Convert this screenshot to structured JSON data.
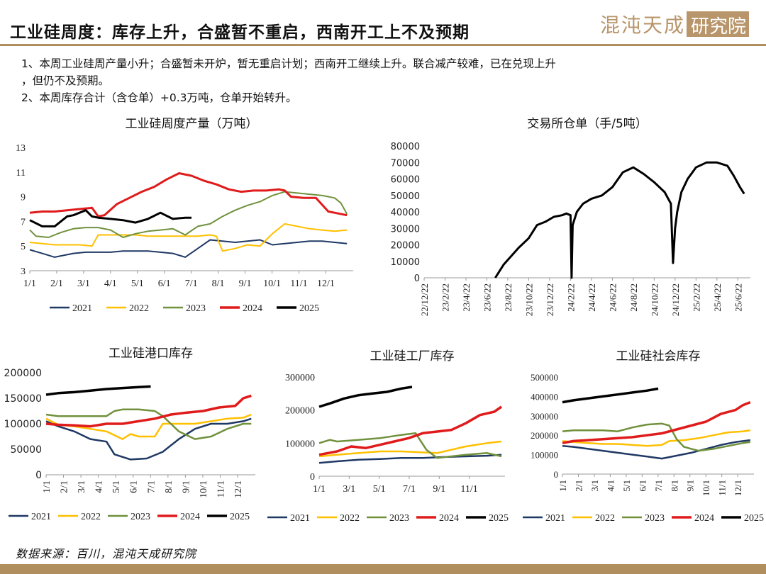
{
  "header": {
    "title": "工业硅周度：库存上升，合盛暂不重启，西南开工上不及预期",
    "logo_text": "混沌天成",
    "logo_box_text": "研究院"
  },
  "bullets": [
    "1、本周工业硅周产量小升；合盛暂未开炉，暂无重启计划；西南开工继续上升。联合减产较难，已在兑现上升",
    "，但仍不及预期。",
    "2、本周库存合计（含仓单）+0.3万吨，仓单开始转升。"
  ],
  "source": "数据来源：百川，混沌天成研究院",
  "colors": {
    "2021": "#1f3864",
    "2022": "#ffc000",
    "2023": "#70913c",
    "2024": "#e01b1b",
    "2025": "#000000",
    "gold": "#b08e5e"
  },
  "chart_data": [
    {
      "id": "weekly_output",
      "type": "line",
      "title": "工业硅周度产量（万吨）",
      "x_ticks": [
        "1/1",
        "2/1",
        "3/1",
        "4/1",
        "5/1",
        "6/1",
        "7/1",
        "8/1",
        "9/1",
        "10/1",
        "11/1",
        "12/1"
      ],
      "ylim": [
        3,
        13
      ],
      "y_ticks": [
        "3",
        "5",
        "7",
        "9",
        "11",
        "13"
      ],
      "series": [
        {
          "name": "2021",
          "x": [
            1,
            3,
            5,
            6,
            8,
            10,
            12,
            14,
            16,
            18,
            20,
            22,
            24,
            26,
            28,
            30,
            32,
            34,
            36,
            38,
            40,
            42,
            44,
            46,
            48,
            50,
            52
          ],
          "values": [
            4.7,
            4.4,
            4.1,
            4.2,
            4.4,
            4.5,
            4.5,
            4.5,
            4.6,
            4.6,
            4.6,
            4.5,
            4.4,
            4.1,
            4.8,
            5.5,
            5.4,
            5.3,
            5.4,
            5.5,
            5.1,
            5.2,
            5.3,
            5.4,
            5.4,
            5.3,
            5.2
          ]
        },
        {
          "name": "2022",
          "x": [
            1,
            3,
            5,
            7,
            9,
            11,
            12,
            14,
            16,
            18,
            20,
            22,
            24,
            26,
            28,
            30,
            31,
            32,
            34,
            36,
            38,
            40,
            42,
            44,
            46,
            48,
            50,
            52
          ],
          "values": [
            5.3,
            5.2,
            5.1,
            5.1,
            5.1,
            5.0,
            5.9,
            5.9,
            5.9,
            5.9,
            5.8,
            5.8,
            5.8,
            5.8,
            5.8,
            5.9,
            5.8,
            4.6,
            4.8,
            5.1,
            5.0,
            6.0,
            6.8,
            6.6,
            6.4,
            6.3,
            6.2,
            6.3
          ]
        },
        {
          "name": "2023",
          "x": [
            1,
            2,
            4,
            6,
            8,
            10,
            12,
            14,
            16,
            18,
            20,
            22,
            24,
            26,
            28,
            30,
            32,
            34,
            36,
            38,
            40,
            42,
            44,
            46,
            48,
            50,
            51,
            52
          ],
          "values": [
            6.3,
            5.8,
            5.7,
            6.1,
            6.4,
            6.5,
            6.5,
            6.3,
            5.7,
            6.0,
            6.2,
            6.3,
            6.4,
            5.9,
            6.6,
            6.8,
            7.4,
            7.9,
            8.3,
            8.6,
            9.1,
            9.4,
            9.3,
            9.2,
            9.1,
            8.9,
            8.5,
            7.6
          ]
        },
        {
          "name": "2024",
          "x": [
            1,
            3,
            5,
            7,
            9,
            11,
            12,
            13,
            15,
            17,
            19,
            21,
            23,
            25,
            27,
            29,
            31,
            33,
            35,
            37,
            39,
            41,
            42,
            43,
            45,
            47,
            49,
            50,
            52
          ],
          "values": [
            7.7,
            7.8,
            7.8,
            7.9,
            8.0,
            8.1,
            7.4,
            7.5,
            8.4,
            8.9,
            9.4,
            9.8,
            10.4,
            10.9,
            10.7,
            10.3,
            10.0,
            9.6,
            9.4,
            9.5,
            9.5,
            9.6,
            9.5,
            9.0,
            8.9,
            8.9,
            7.8,
            7.7,
            7.5
          ]
        },
        {
          "name": "2025",
          "x": [
            1,
            3,
            5,
            7,
            8,
            10,
            11,
            12,
            14,
            16,
            18,
            20,
            22,
            24,
            26,
            27
          ],
          "values": [
            7.1,
            6.6,
            6.6,
            7.4,
            7.5,
            7.9,
            7.4,
            7.3,
            7.2,
            7.1,
            6.9,
            7.2,
            7.7,
            7.2,
            7.3,
            7.3
          ]
        }
      ],
      "legend": [
        "2021",
        "2022",
        "2023",
        "2024",
        "2025"
      ]
    },
    {
      "id": "exchange_warrants",
      "type": "line",
      "title": "交易所仓单（手/5吨）",
      "x_ticks": [
        "22/12/22",
        "23/2/22",
        "23/4/22",
        "23/6/22",
        "23/8/22",
        "23/10/22",
        "23/12/22",
        "24/2/22",
        "24/4/22",
        "24/6/22",
        "24/8/22",
        "24/10/22",
        "24/12/22",
        "25/2/22",
        "25/4/22",
        "25/6/22"
      ],
      "ylim": [
        0,
        80000
      ],
      "y_ticks": [
        "0",
        "10000",
        "20000",
        "30000",
        "40000",
        "50000",
        "60000",
        "70000",
        "80000"
      ],
      "series": [
        {
          "name": "warrants",
          "x": [
            0,
            1.5,
            3.4,
            3.8,
            4.5,
            5.0,
            5.4,
            5.8,
            6.2,
            6.6,
            6.8,
            7.0,
            7.05,
            7.1,
            7.3,
            7.6,
            8.0,
            8.5,
            9.0,
            9.5,
            10.0,
            10.5,
            11.0,
            11.5,
            11.8,
            11.9,
            12.0,
            12.1,
            12.3,
            12.6,
            13.0,
            13.5,
            14.0,
            14.5,
            14.8,
            15.1,
            15.3
          ],
          "values": [
            null,
            null,
            0,
            8000,
            18000,
            24000,
            32000,
            34000,
            37000,
            38000,
            39000,
            38000,
            0,
            32000,
            40000,
            45000,
            48000,
            50000,
            55000,
            64000,
            67000,
            63000,
            58000,
            52000,
            45000,
            9000,
            30000,
            40000,
            52000,
            60000,
            67000,
            70000,
            70000,
            68000,
            62000,
            55000,
            51000
          ]
        }
      ]
    },
    {
      "id": "port_inventory",
      "type": "line",
      "title": "工业硅港口库存",
      "x_ticks": [
        "1/1",
        "2/1",
        "3/1",
        "4/1",
        "5/1",
        "6/1",
        "7/1",
        "8/1",
        "9/1",
        "10/1",
        "11/1",
        "12/1"
      ],
      "ylim": [
        0,
        200000
      ],
      "y_ticks": [
        "0",
        "50000",
        "100000",
        "150000",
        "200000"
      ],
      "series": [
        {
          "name": "2021",
          "x": [
            1,
            4,
            8,
            12,
            16,
            18,
            20,
            22,
            26,
            30,
            34,
            38,
            42,
            46,
            50,
            52
          ],
          "values": [
            105000,
            95000,
            85000,
            70000,
            65000,
            40000,
            35000,
            30000,
            32000,
            45000,
            70000,
            90000,
            100000,
            100000,
            105000,
            110000
          ]
        },
        {
          "name": "2022",
          "x": [
            1,
            4,
            8,
            12,
            16,
            20,
            22,
            24,
            28,
            30,
            34,
            38,
            42,
            46,
            50,
            52
          ],
          "values": [
            110000,
            98000,
            95000,
            90000,
            85000,
            70000,
            80000,
            75000,
            75000,
            100000,
            100000,
            100000,
            105000,
            110000,
            112000,
            118000
          ]
        },
        {
          "name": "2023",
          "x": [
            1,
            4,
            8,
            12,
            16,
            18,
            20,
            22,
            24,
            28,
            30,
            32,
            34,
            38,
            42,
            46,
            50,
            52
          ],
          "values": [
            118000,
            115000,
            115000,
            115000,
            115000,
            125000,
            128000,
            128000,
            128000,
            125000,
            115000,
            100000,
            85000,
            70000,
            75000,
            90000,
            100000,
            100000
          ]
        },
        {
          "name": "2024",
          "x": [
            1,
            4,
            8,
            12,
            16,
            20,
            24,
            28,
            32,
            36,
            40,
            44,
            48,
            50,
            52
          ],
          "values": [
            100000,
            98000,
            97000,
            95000,
            100000,
            100000,
            105000,
            110000,
            118000,
            122000,
            125000,
            132000,
            135000,
            150000,
            155000
          ]
        },
        {
          "name": "2025",
          "x": [
            1,
            4,
            8,
            12,
            16,
            20,
            24,
            27
          ],
          "values": [
            157000,
            160000,
            162000,
            165000,
            168000,
            170000,
            172000,
            173000
          ]
        }
      ],
      "legend": [
        "2021",
        "2022",
        "2023",
        "2024",
        "2025"
      ]
    },
    {
      "id": "factory_inventory",
      "type": "line",
      "title": "工业硅工厂库存",
      "x_ticks": [
        "1/1",
        "3/1",
        "5/1",
        "7/1",
        "9/1",
        "11/1"
      ],
      "ylim": [
        0,
        300000
      ],
      "y_ticks": [
        "0",
        "100000",
        "200000",
        "300000"
      ],
      "series": [
        {
          "name": "2021",
          "x": [
            1,
            6,
            12,
            18,
            24,
            30,
            36,
            42,
            48,
            52
          ],
          "values": [
            40000,
            45000,
            50000,
            52000,
            55000,
            55000,
            58000,
            60000,
            62000,
            65000
          ]
        },
        {
          "name": "2022",
          "x": [
            1,
            6,
            12,
            18,
            24,
            30,
            34,
            38,
            42,
            48,
            52
          ],
          "values": [
            60000,
            65000,
            70000,
            75000,
            75000,
            72000,
            70000,
            80000,
            90000,
            100000,
            105000
          ]
        },
        {
          "name": "2023",
          "x": [
            1,
            4,
            6,
            12,
            18,
            24,
            28,
            31,
            34,
            38,
            42,
            48,
            52
          ],
          "values": [
            100000,
            110000,
            105000,
            110000,
            115000,
            125000,
            130000,
            80000,
            55000,
            60000,
            65000,
            70000,
            60000
          ]
        },
        {
          "name": "2024",
          "x": [
            1,
            6,
            10,
            14,
            18,
            22,
            26,
            30,
            34,
            38,
            42,
            46,
            50,
            52
          ],
          "values": [
            65000,
            75000,
            90000,
            85000,
            95000,
            105000,
            115000,
            130000,
            135000,
            140000,
            160000,
            185000,
            195000,
            210000
          ]
        },
        {
          "name": "2025",
          "x": [
            1,
            4,
            8,
            12,
            16,
            20,
            24,
            27
          ],
          "values": [
            210000,
            220000,
            235000,
            245000,
            250000,
            255000,
            265000,
            270000
          ]
        }
      ],
      "legend": [
        "2021",
        "2022",
        "2023",
        "2024",
        "2025"
      ]
    },
    {
      "id": "social_inventory",
      "type": "line",
      "title": "工业硅社会库存",
      "x_ticks": [
        "1/1",
        "2/1",
        "3/1",
        "4/1",
        "5/1",
        "6/1",
        "7/1",
        "8/1",
        "9/1",
        "10/1",
        "11/1",
        "12/1"
      ],
      "ylim": [
        0,
        500000
      ],
      "y_ticks": [
        "0",
        "100000",
        "200000",
        "300000",
        "400000",
        "500000"
      ],
      "series": [
        {
          "name": "2021",
          "x": [
            1,
            4,
            8,
            12,
            16,
            20,
            24,
            28,
            32,
            36,
            40,
            44,
            48,
            52
          ],
          "values": [
            145000,
            140000,
            130000,
            120000,
            110000,
            100000,
            90000,
            80000,
            95000,
            110000,
            130000,
            150000,
            165000,
            175000
          ]
        },
        {
          "name": "2022",
          "x": [
            1,
            4,
            8,
            12,
            16,
            20,
            24,
            28,
            30,
            34,
            38,
            42,
            46,
            50,
            52
          ],
          "values": [
            170000,
            165000,
            160000,
            155000,
            155000,
            150000,
            145000,
            150000,
            170000,
            175000,
            185000,
            200000,
            215000,
            220000,
            225000
          ]
        },
        {
          "name": "2023",
          "x": [
            1,
            4,
            8,
            12,
            16,
            20,
            24,
            28,
            30,
            32,
            34,
            36,
            38,
            42,
            46,
            50,
            52
          ],
          "values": [
            220000,
            225000,
            225000,
            225000,
            220000,
            240000,
            255000,
            260000,
            250000,
            180000,
            140000,
            130000,
            120000,
            130000,
            145000,
            160000,
            165000
          ]
        },
        {
          "name": "2024",
          "x": [
            1,
            4,
            8,
            12,
            16,
            20,
            24,
            28,
            32,
            36,
            40,
            44,
            48,
            50,
            52
          ],
          "values": [
            160000,
            170000,
            175000,
            180000,
            185000,
            190000,
            200000,
            210000,
            230000,
            250000,
            270000,
            310000,
            330000,
            355000,
            370000
          ]
        },
        {
          "name": "2025",
          "x": [
            1,
            4,
            8,
            12,
            16,
            20,
            24,
            27
          ],
          "values": [
            370000,
            380000,
            390000,
            400000,
            410000,
            420000,
            430000,
            440000
          ]
        }
      ],
      "legend": [
        "2021",
        "2022",
        "2023",
        "2024",
        "2025"
      ]
    }
  ]
}
